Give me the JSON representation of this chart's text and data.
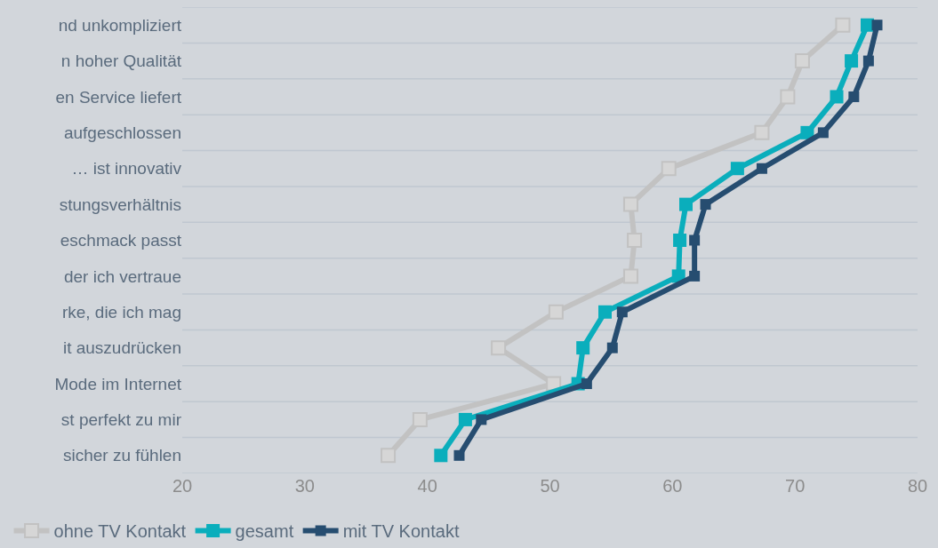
{
  "chart_data": {
    "type": "line",
    "categories": [
      "nd unkompliziert",
      "n hoher Qualität",
      "en Service liefert",
      "aufgeschlossen",
      "… ist innovativ",
      "stungsverhältnis",
      "eschmack passt",
      "der ich vertraue",
      "rke, die ich mag",
      "it auszudrücken",
      "Mode im Internet",
      "st perfekt zu mir",
      "sicher zu fühlen"
    ],
    "orientation": "horizontal",
    "series": [
      {
        "name": "ohne TV Kontakt",
        "color": "#c2c2c2",
        "values": [
          73.9,
          70.6,
          69.4,
          67.3,
          59.7,
          56.6,
          56.9,
          56.6,
          50.5,
          45.8,
          50.3,
          39.4,
          36.8
        ]
      },
      {
        "name": "gesamt",
        "color": "#0aaebc",
        "values": [
          75.9,
          74.6,
          73.4,
          71.0,
          65.3,
          61.1,
          60.6,
          60.5,
          54.5,
          52.7,
          52.3,
          43.1,
          41.1
        ]
      },
      {
        "name": "mit TV Kontakt",
        "color": "#264d70",
        "values": [
          76.7,
          76.0,
          74.8,
          72.3,
          67.3,
          62.7,
          61.8,
          61.8,
          55.9,
          55.1,
          53.0,
          44.4,
          42.6
        ]
      }
    ],
    "xlim": [
      20,
      80
    ],
    "xticks": [
      20,
      30,
      40,
      50,
      60,
      70,
      80
    ],
    "grid": "y",
    "legend": "bottom left",
    "marker": "square",
    "line_style": "solid"
  }
}
